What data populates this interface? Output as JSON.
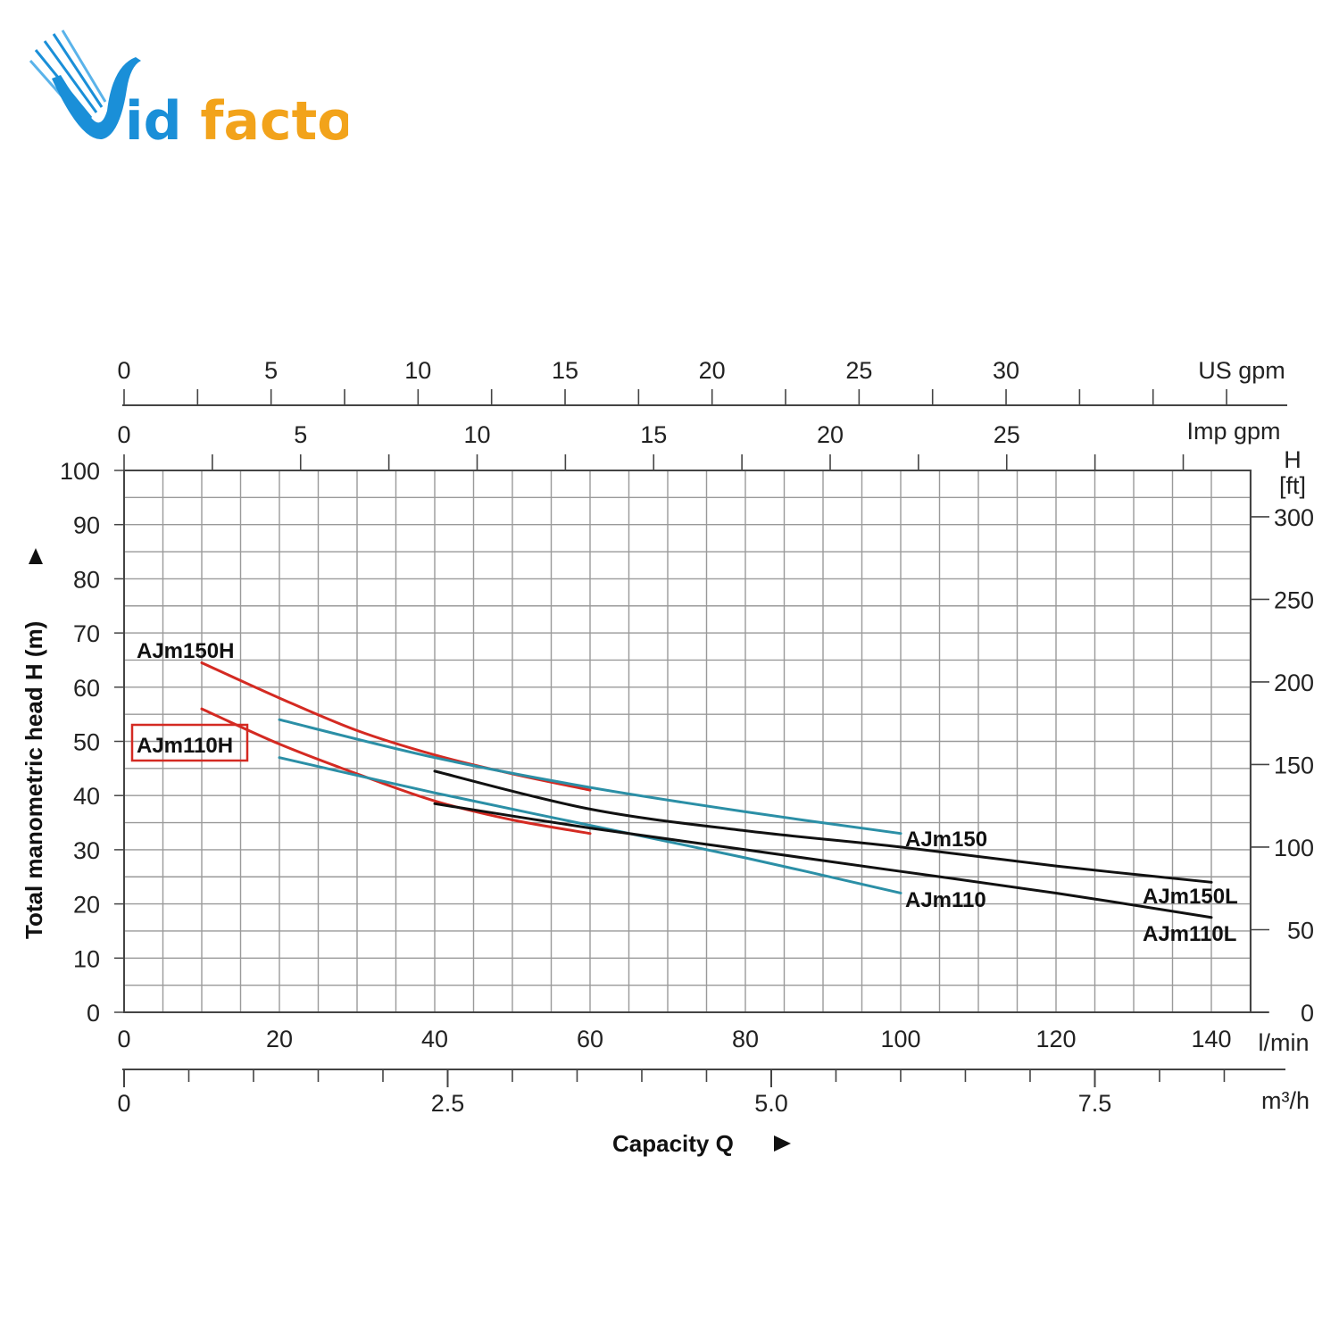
{
  "logo": {
    "text_v": "V",
    "text_rest": "idfactor",
    "colors": {
      "blue": "#1a8fd8",
      "orange": "#f2a31b"
    }
  },
  "colors": {
    "grid": "#9a9a9a",
    "axis": "#444444",
    "red": "#d42a22",
    "teal": "#2b8fa6",
    "black": "#111111",
    "highlight_box": "#d42a22"
  },
  "chart_data": {
    "type": "line",
    "x_unit": "l/min",
    "y_unit": "m",
    "ylabel": "Total manometric head H (m)",
    "xlabel": "Capacity Q",
    "xlim": [
      0,
      145
    ],
    "ylim": [
      0,
      100
    ],
    "grid": true,
    "y_ticks": [
      0,
      10,
      20,
      30,
      40,
      50,
      60,
      70,
      80,
      90,
      100
    ],
    "x_ticks_lmin": [
      0,
      20,
      40,
      60,
      80,
      100,
      120,
      140
    ],
    "x_unit_label": "l/min",
    "axis_m3h": {
      "unit_label": "m³/h",
      "labels": [
        "0",
        "2.5",
        "5.0",
        "7.5"
      ],
      "lmin_positions": [
        0,
        41.667,
        83.333,
        125
      ],
      "minor_step_lmin": 8.333
    },
    "axis_us_gpm": {
      "unit_label": "US gpm",
      "labels": [
        "0",
        "5",
        "10",
        "15",
        "20",
        "25",
        "30"
      ],
      "lmin_positions": [
        0,
        18.93,
        37.85,
        56.78,
        75.71,
        94.64,
        113.56
      ],
      "minor_step_lmin": 9.464
    },
    "axis_imp_gpm": {
      "unit_label": "Imp gpm",
      "labels": [
        "0",
        "5",
        "10",
        "15",
        "20",
        "25"
      ],
      "lmin_positions": [
        0,
        22.73,
        45.46,
        68.19,
        90.92,
        113.65
      ],
      "minor_step_lmin": 11.365
    },
    "axis_ft": {
      "title": "H",
      "unit": "[ft]",
      "labels": [
        "0",
        "50",
        "100",
        "150",
        "200",
        "250",
        "300"
      ],
      "m_positions": [
        0,
        15.24,
        30.48,
        45.72,
        60.96,
        76.2,
        91.44
      ]
    },
    "series": [
      {
        "name": "AJm150H",
        "color": "red",
        "x": [
          10,
          20,
          30,
          40,
          50,
          60
        ],
        "y": [
          64.5,
          58,
          52,
          47.5,
          44,
          41
        ]
      },
      {
        "name": "AJm110H",
        "color": "red",
        "x": [
          10,
          20,
          30,
          40,
          50,
          60
        ],
        "y": [
          56,
          49.5,
          44,
          39,
          35.5,
          33
        ]
      },
      {
        "name": "AJm150",
        "color": "teal",
        "x": [
          20,
          40,
          60,
          80,
          100
        ],
        "y": [
          54,
          47,
          41.5,
          37,
          33
        ]
      },
      {
        "name": "AJm110",
        "color": "teal",
        "x": [
          20,
          40,
          60,
          80,
          100
        ],
        "y": [
          47,
          40.5,
          34.5,
          28.5,
          22
        ]
      },
      {
        "name": "AJm150L",
        "color": "black",
        "x": [
          40,
          60,
          80,
          100,
          120,
          140
        ],
        "y": [
          44.5,
          37.5,
          33.5,
          30.5,
          27,
          24
        ]
      },
      {
        "name": "AJm110L",
        "color": "black",
        "x": [
          40,
          60,
          80,
          100,
          120,
          140
        ],
        "y": [
          38.5,
          34,
          30,
          26,
          22,
          17.5
        ]
      }
    ],
    "highlighted_series": "AJm110H"
  }
}
